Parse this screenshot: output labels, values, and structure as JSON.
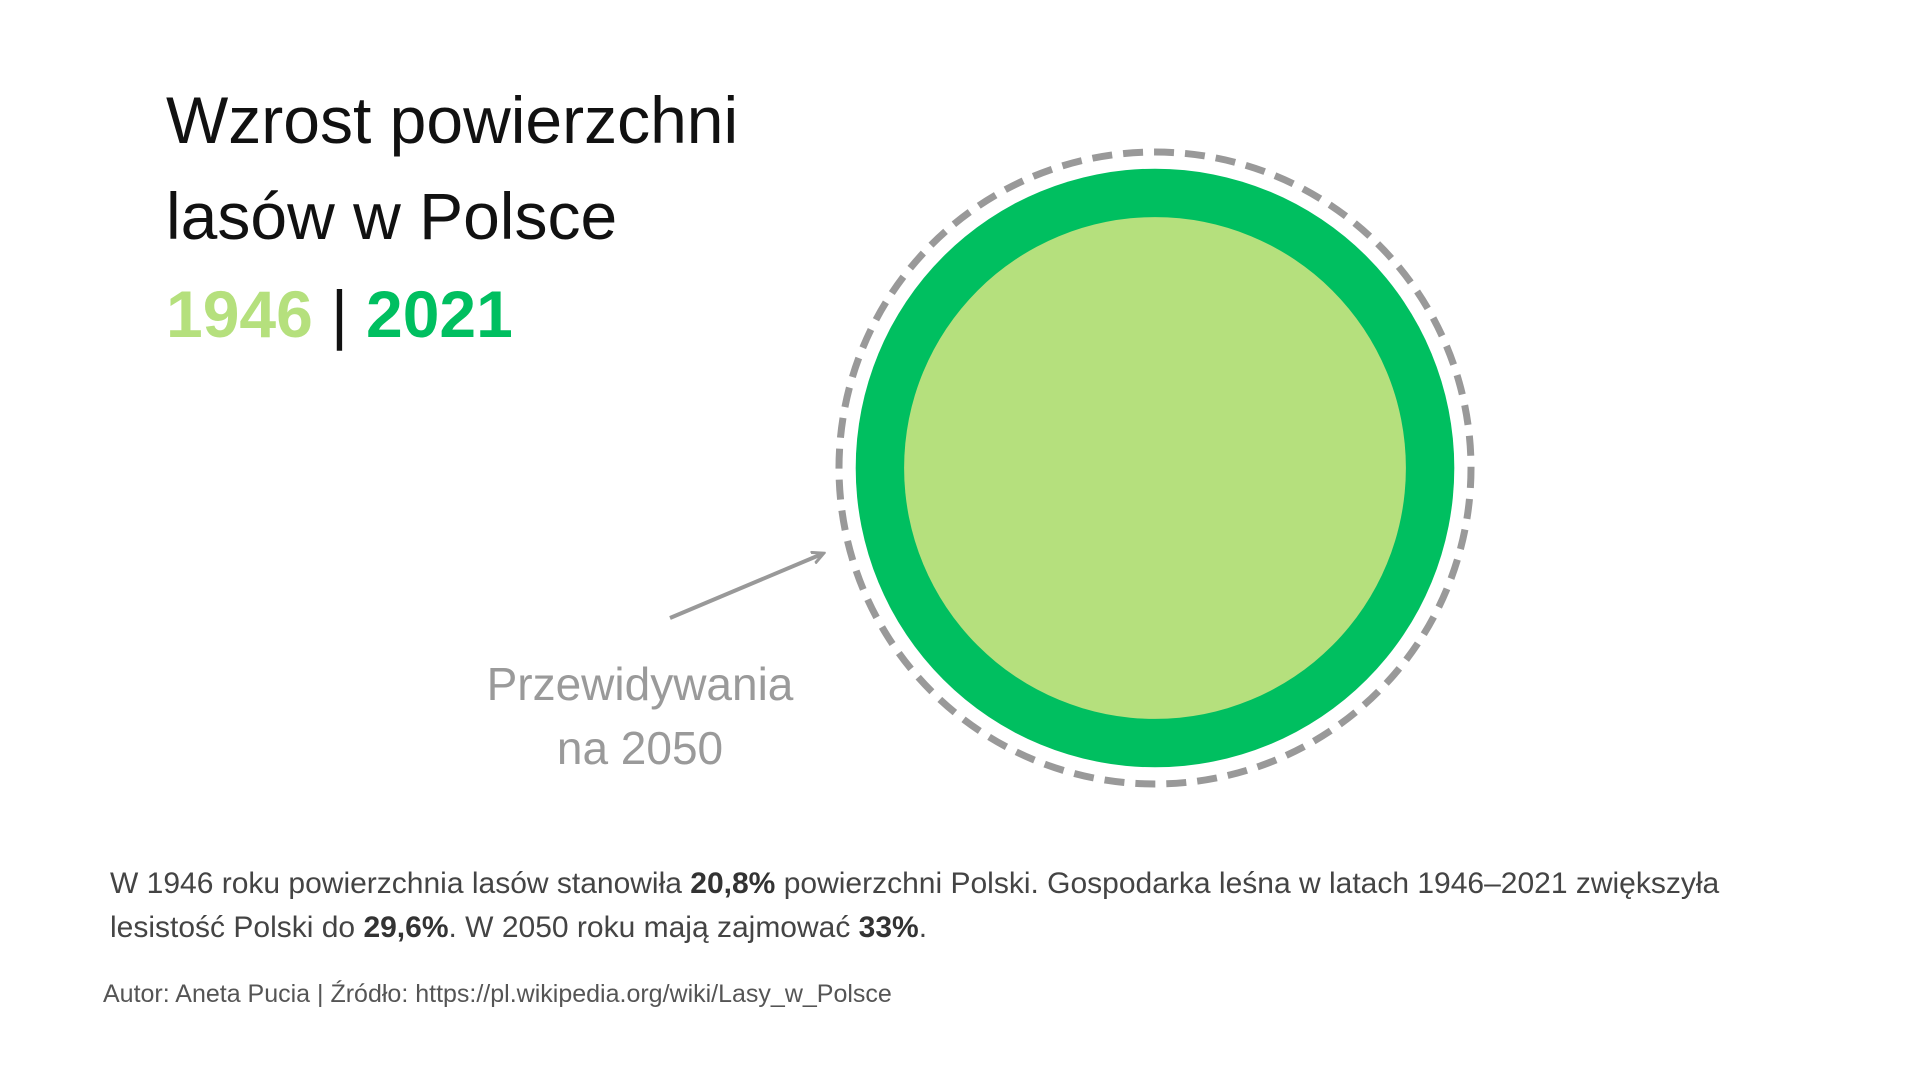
{
  "title": {
    "line1": "Wzrost powierzchni",
    "line2": "lasów w Polsce",
    "year_a": "1946",
    "separator": "|",
    "year_b": "2021"
  },
  "colors": {
    "year_1946": "#b5e07d",
    "year_2021": "#00bf60",
    "forecast_2050": "#999999",
    "text": "#111111",
    "muted": "#9a9a9a"
  },
  "chart_data": {
    "type": "area-circles",
    "title": "Wzrost powierzchni lasów w Polsce",
    "unit": "%",
    "series": [
      {
        "name": "1946",
        "value": 20.8,
        "color": "#b5e07d",
        "style": "filled"
      },
      {
        "name": "2021",
        "value": 29.6,
        "color": "#00bf60",
        "style": "filled"
      },
      {
        "name": "2050",
        "value": 33,
        "color": "#999999",
        "style": "dashed-outline"
      }
    ],
    "annotation": {
      "line1": "Przewidywania",
      "line2": "na 2050"
    }
  },
  "description": {
    "part1": "W 1946 roku powierzchnia lasów stanowiła ",
    "bold1": "20,8%",
    "part2": " powierzchni Polski. Gospodarka leśna w latach 1946–2021 zwiększyła lesistość Polski do ",
    "bold2": "29,6%",
    "part3": ". W 2050 roku mają zajmować ",
    "bold3": "33%",
    "part4": "."
  },
  "credits": "Autor: Aneta Pucia | Źródło: https://pl.wikipedia.org/wiki/Lasy_w_Polsce"
}
